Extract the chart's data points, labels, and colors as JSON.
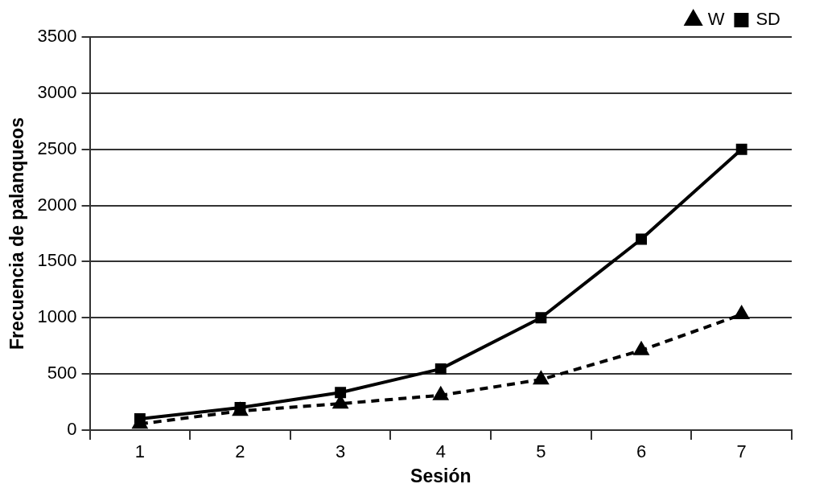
{
  "chart_data": {
    "type": "line",
    "xlabel": "Sesión",
    "ylabel": "Frecuencia de palanqueos",
    "categories": [
      "1",
      "2",
      "3",
      "4",
      "5",
      "6",
      "7"
    ],
    "series": [
      {
        "name": "SD",
        "color": "#000000",
        "values": [
          100,
          200,
          335,
          545,
          1000,
          1700,
          2500
        ],
        "marker": "square",
        "line_style": "solid"
      },
      {
        "name": "W",
        "color": "#000000",
        "values": [
          55,
          170,
          235,
          310,
          450,
          710,
          1030
        ],
        "marker": "triangle",
        "line_style": "dashed"
      }
    ],
    "ylim": [
      0,
      3500
    ],
    "yticks": [
      0,
      500,
      1000,
      1500,
      2000,
      2500,
      3000,
      3500
    ],
    "grid": "y",
    "legend": "top right"
  }
}
